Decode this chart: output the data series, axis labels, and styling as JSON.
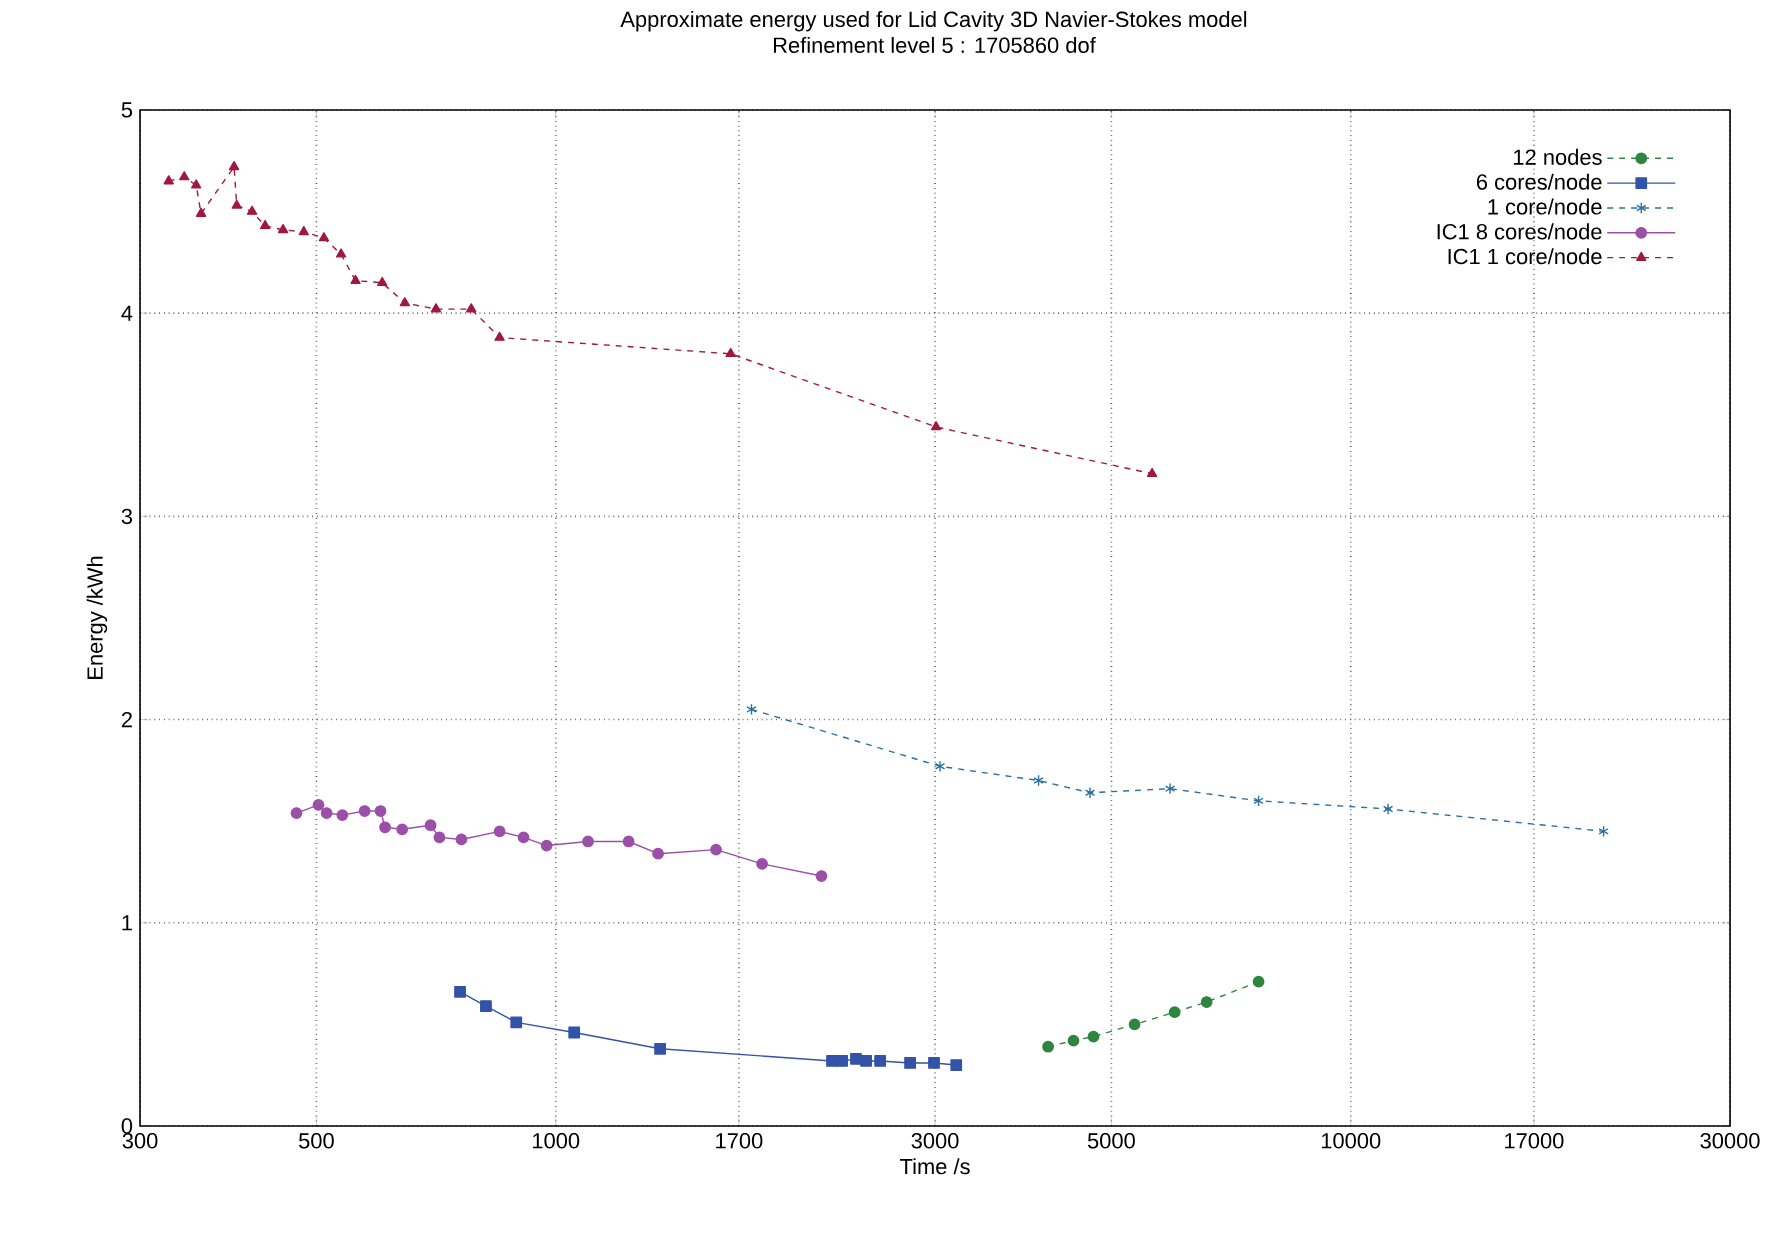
{
  "chart_data": {
    "type": "line",
    "title": "Approximate energy used for Lid Cavity 3D Navier-Stokes model",
    "subtitle": "Refinement level 5 : 1705860 dof",
    "xlabel": "Time /s",
    "ylabel": "Energy /kWh",
    "log": "x",
    "xlim": [
      300,
      30000
    ],
    "xticks": [
      300,
      500,
      1000,
      1700,
      3000,
      5000,
      10000,
      17000,
      30000
    ],
    "ylim": [
      0,
      5
    ],
    "yticks": [
      0,
      1,
      2,
      3,
      4,
      5
    ],
    "grid": true,
    "legend": "top right",
    "series": [
      {
        "name": "12 nodes",
        "color": "#2e8540",
        "marker": "circle",
        "line_style": "dashed",
        "x": [
          4162,
          4480,
          4747,
          5347,
          6005,
          6589,
          7659
        ],
        "values": [
          0.39,
          0.42,
          0.44,
          0.5,
          0.56,
          0.61,
          0.71
        ]
      },
      {
        "name": "6 cores/node",
        "color": "#3353a8",
        "marker": "square",
        "line_style": "solid",
        "x": [
          758,
          817,
          892,
          1055,
          1353,
          2226,
          2292,
          2386,
          2457,
          2559,
          2791,
          2991,
          3190
        ],
        "values": [
          0.66,
          0.59,
          0.51,
          0.46,
          0.38,
          0.32,
          0.32,
          0.33,
          0.32,
          0.32,
          0.31,
          0.31,
          0.3
        ]
      },
      {
        "name": "1 core/node",
        "color": "#2a6fa0",
        "marker": "cross",
        "line_style": "dashed",
        "x": [
          1763,
          3044,
          4049,
          4700,
          5926,
          7659,
          11142,
          20800
        ],
        "values": [
          2.05,
          1.77,
          1.7,
          1.64,
          1.66,
          1.6,
          1.56,
          1.45
        ]
      },
      {
        "name": "IC1 8 cores/node",
        "color": "#9b4fa8",
        "marker": "circle",
        "line_style": "solid",
        "x": [
          472,
          503,
          515,
          539,
          575,
          602,
          610,
          641,
          696,
          714,
          761,
          850,
          911,
          974,
          1098,
          1235,
          1345,
          1591,
          1818,
          2159
        ],
        "values": [
          1.54,
          1.58,
          1.54,
          1.53,
          1.55,
          1.55,
          1.47,
          1.46,
          1.48,
          1.42,
          1.41,
          1.45,
          1.42,
          1.38,
          1.4,
          1.4,
          1.34,
          1.36,
          1.29,
          1.23
        ]
      },
      {
        "name": "IC1 1 core/node",
        "color": "#a0193c",
        "marker": "triangle",
        "line_style": "dashed",
        "x": [
          326,
          341,
          353,
          358,
          394,
          397,
          415,
          431,
          454,
          482,
          511,
          537,
          560,
          605,
          646,
          707,
          783,
          850,
          1660,
          3009,
          5625
        ],
        "values": [
          4.65,
          4.67,
          4.63,
          4.49,
          4.72,
          4.53,
          4.5,
          4.43,
          4.41,
          4.4,
          4.37,
          4.29,
          4.16,
          4.15,
          4.05,
          4.02,
          4.02,
          3.88,
          3.8,
          3.44,
          3.21
        ]
      }
    ]
  }
}
